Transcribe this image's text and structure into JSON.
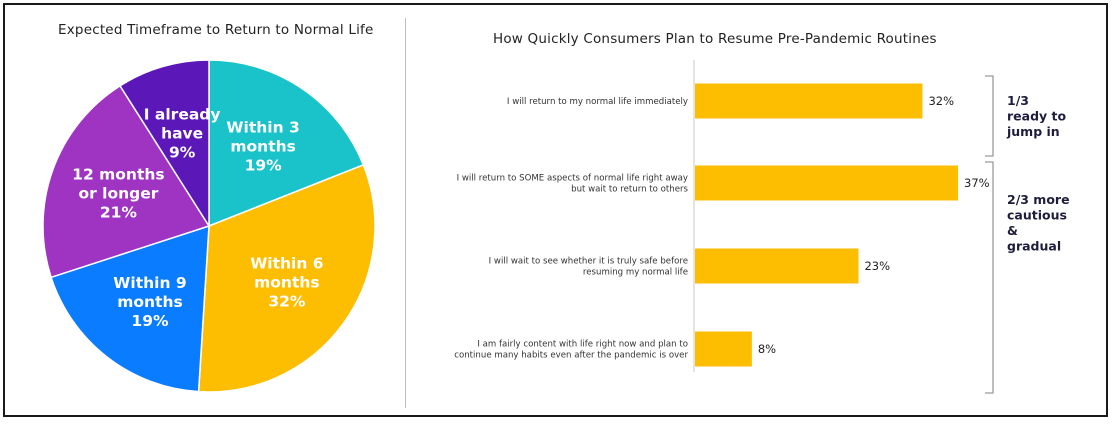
{
  "chart_data": [
    {
      "type": "pie",
      "title": "Expected Timeframe to Return to Normal Life",
      "slices": [
        {
          "label_lines": [
            "Within 3",
            "months"
          ],
          "pct_label": "19%",
          "value": 19,
          "color": "#19C3C9"
        },
        {
          "label_lines": [
            "Within 6",
            "months"
          ],
          "pct_label": "32%",
          "value": 32,
          "color": "#FDBE02"
        },
        {
          "label_lines": [
            "Within 9",
            "months"
          ],
          "pct_label": "19%",
          "value": 19,
          "color": "#0A7CFF"
        },
        {
          "label_lines": [
            "12 months",
            "or longer"
          ],
          "pct_label": "21%",
          "value": 21,
          "color": "#9F34C2"
        },
        {
          "label_lines": [
            "I already",
            "have"
          ],
          "pct_label": "9%",
          "value": 9,
          "color": "#5B17B8"
        }
      ]
    },
    {
      "type": "bar",
      "orientation": "horizontal",
      "title": "How Quickly Consumers Plan to Resume Pre-Pandemic Routines",
      "color": "#FDBE02",
      "xlim": [
        0,
        40
      ],
      "categories": [
        {
          "lines": [
            "I will return to my normal life immediately"
          ],
          "value": 32,
          "value_label": "32%"
        },
        {
          "lines": [
            "I will return to SOME aspects of normal life right away",
            "but wait to return to others"
          ],
          "value": 37,
          "value_label": "37%"
        },
        {
          "lines": [
            "I will wait to see whether it is truly safe before",
            "resuming my normal life"
          ],
          "value": 23,
          "value_label": "23%"
        },
        {
          "lines": [
            "I am fairly content with life right now and plan to",
            "continue many habits even after the pandemic is over"
          ],
          "value": 8,
          "value_label": "8%"
        }
      ],
      "annotations": [
        {
          "lines": [
            "1/3",
            "ready to",
            "jump in"
          ],
          "covers": [
            0
          ]
        },
        {
          "lines": [
            "2/3 more",
            "cautious",
            "&",
            "gradual"
          ],
          "covers": [
            1,
            2,
            3
          ]
        }
      ]
    }
  ]
}
